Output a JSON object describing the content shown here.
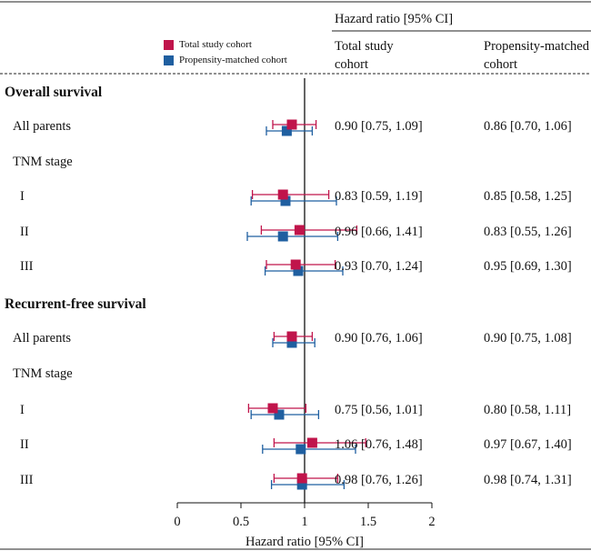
{
  "header": {
    "hr_title": "Hazard ratio [95% CI]",
    "col_total": [
      "Total study",
      "cohort"
    ],
    "col_matched": [
      "Propensity-matched",
      "cohort"
    ]
  },
  "legend": [
    {
      "label": "Total study cohort",
      "color": "#c0144b"
    },
    {
      "label": "Propensity-matched cohort",
      "color": "#1f5fa0"
    }
  ],
  "colors": {
    "total": "#c0144b",
    "matched": "#1f5fa0"
  },
  "chart_data": {
    "type": "forest",
    "xlabel": "Hazard ratio [95% CI]",
    "xticks": [
      0,
      0.5,
      1,
      1.5,
      2
    ],
    "xtick_labels": [
      "0",
      "0.5",
      "1",
      "1.5",
      "2"
    ],
    "xlim": [
      0,
      2
    ],
    "reference_line": 1,
    "series": [
      {
        "name": "Total study cohort"
      },
      {
        "name": "Propensity-matched cohort"
      }
    ],
    "rows": [
      {
        "label": "Overall survival",
        "kind": "section"
      },
      {
        "label": "All parents",
        "kind": "row",
        "total": {
          "hr": 0.9,
          "lo": 0.75,
          "hi": 1.09,
          "text": "0.90 [0.75, 1.09]"
        },
        "matched": {
          "hr": 0.86,
          "lo": 0.7,
          "hi": 1.06,
          "text": "0.86 [0.70, 1.06]"
        }
      },
      {
        "label": "TNM stage",
        "kind": "group"
      },
      {
        "label": "I",
        "kind": "sub",
        "total": {
          "hr": 0.83,
          "lo": 0.59,
          "hi": 1.19,
          "text": "0.83 [0.59, 1.19]"
        },
        "matched": {
          "hr": 0.85,
          "lo": 0.58,
          "hi": 1.25,
          "text": "0.85 [0.58, 1.25]"
        }
      },
      {
        "label": "II",
        "kind": "sub",
        "total": {
          "hr": 0.96,
          "lo": 0.66,
          "hi": 1.41,
          "text": "0.96 [0.66, 1.41]"
        },
        "matched": {
          "hr": 0.83,
          "lo": 0.55,
          "hi": 1.26,
          "text": "0.83 [0.55, 1.26]"
        }
      },
      {
        "label": "III",
        "kind": "sub",
        "total": {
          "hr": 0.93,
          "lo": 0.7,
          "hi": 1.24,
          "text": "0.93 [0.70, 1.24]"
        },
        "matched": {
          "hr": 0.95,
          "lo": 0.69,
          "hi": 1.3,
          "text": "0.95 [0.69, 1.30]"
        }
      },
      {
        "label": "Recurrent-free survival",
        "kind": "section"
      },
      {
        "label": "All parents",
        "kind": "row",
        "total": {
          "hr": 0.9,
          "lo": 0.76,
          "hi": 1.06,
          "text": "0.90 [0.76, 1.06]"
        },
        "matched": {
          "hr": 0.9,
          "lo": 0.75,
          "hi": 1.08,
          "text": "0.90 [0.75, 1.08]"
        }
      },
      {
        "label": "TNM stage",
        "kind": "group"
      },
      {
        "label": "I",
        "kind": "sub",
        "total": {
          "hr": 0.75,
          "lo": 0.56,
          "hi": 1.01,
          "text": "0.75 [0.56, 1.01]"
        },
        "matched": {
          "hr": 0.8,
          "lo": 0.58,
          "hi": 1.11,
          "text": "0.80 [0.58, 1.11]"
        }
      },
      {
        "label": "II",
        "kind": "sub",
        "total": {
          "hr": 1.06,
          "lo": 0.76,
          "hi": 1.48,
          "text": "1.06 [0.76, 1.48]"
        },
        "matched": {
          "hr": 0.97,
          "lo": 0.67,
          "hi": 1.4,
          "text": "0.97 [0.67, 1.40]"
        }
      },
      {
        "label": "III",
        "kind": "sub",
        "total": {
          "hr": 0.98,
          "lo": 0.76,
          "hi": 1.26,
          "text": "0.98 [0.76, 1.26]"
        },
        "matched": {
          "hr": 0.98,
          "lo": 0.74,
          "hi": 1.31,
          "text": "0.98 [0.74, 1.31]"
        }
      }
    ]
  }
}
